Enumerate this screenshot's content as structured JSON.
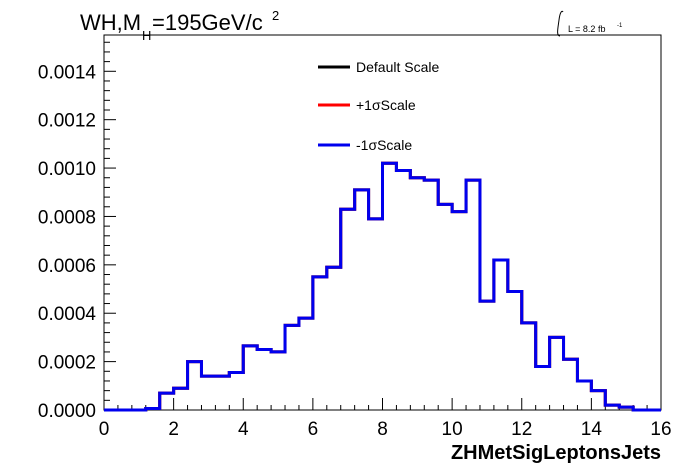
{
  "header": {
    "title_main": "WH,M",
    "title_sub": "H",
    "title_rest": "=195GeV/c",
    "title_sup": "2",
    "lumi_label": "L = 8.2 fb",
    "lumi_sup": "-1"
  },
  "chart_data": {
    "type": "line",
    "xlabel": "ZHMetSigLeptonsJets",
    "ylabel": "",
    "xlim": [
      0,
      16
    ],
    "ylim": [
      0,
      0.00155
    ],
    "x_ticks": [
      "0",
      "2",
      "4",
      "6",
      "8",
      "10",
      "12",
      "14",
      "16"
    ],
    "y_ticks": [
      "0.0000",
      "0.0002",
      "0.0004",
      "0.0006",
      "0.0008",
      "0.0010",
      "0.0012",
      "0.0014"
    ],
    "grid": false,
    "legend_position": "top-center",
    "bin_edges": [
      0,
      0.4,
      0.8,
      1.2,
      1.6,
      2.0,
      2.4,
      2.8,
      3.2,
      3.6,
      4.0,
      4.4,
      4.8,
      5.2,
      5.6,
      6.0,
      6.4,
      6.8,
      7.2,
      7.6,
      8.0,
      8.4,
      8.8,
      9.2,
      9.6,
      10.0,
      10.4,
      10.8,
      11.2,
      11.6,
      12.0,
      12.4,
      12.8,
      13.2,
      13.6,
      14.0,
      14.4,
      14.8,
      15.2,
      15.6,
      16.0
    ],
    "series": [
      {
        "name": "Default Scale",
        "color": "#000000",
        "values": [
          0,
          0,
          0,
          6e-06,
          7e-05,
          9e-05,
          0.0002,
          0.00014,
          0.00014,
          0.000155,
          0.000265,
          0.00025,
          0.00024,
          0.00035,
          0.00038,
          0.00055,
          0.00059,
          0.00083,
          0.00091,
          0.00079,
          0.00102,
          0.00099,
          0.00096,
          0.00095,
          0.00085,
          0.00082,
          0.00095,
          0.00045,
          0.00062,
          0.00049,
          0.00036,
          0.00018,
          0.0003,
          0.00021,
          0.00012,
          8e-05,
          2e-05,
          1.2e-05,
          0,
          0
        ]
      },
      {
        "name": "+1σScale",
        "color": "#ff0000",
        "values": [
          0,
          0,
          0,
          6e-06,
          7e-05,
          9e-05,
          0.0002,
          0.00014,
          0.00014,
          0.000155,
          0.000265,
          0.00025,
          0.00024,
          0.00035,
          0.00038,
          0.00055,
          0.00059,
          0.00083,
          0.00091,
          0.00079,
          0.00102,
          0.00099,
          0.00096,
          0.00095,
          0.00085,
          0.00082,
          0.00095,
          0.00045,
          0.00062,
          0.00049,
          0.00036,
          0.00018,
          0.0003,
          0.00021,
          0.00012,
          8e-05,
          2e-05,
          1.2e-05,
          0,
          0
        ]
      },
      {
        "name": "-1σScale",
        "color": "#0000ee",
        "values": [
          0,
          0,
          0,
          6e-06,
          7e-05,
          9e-05,
          0.0002,
          0.00014,
          0.00014,
          0.000155,
          0.000265,
          0.00025,
          0.00024,
          0.00035,
          0.00038,
          0.00055,
          0.00059,
          0.00083,
          0.00091,
          0.00079,
          0.00102,
          0.00099,
          0.00096,
          0.00095,
          0.00085,
          0.00082,
          0.00095,
          0.00045,
          0.00062,
          0.00049,
          0.00036,
          0.00018,
          0.0003,
          0.00021,
          0.00012,
          8e-05,
          2e-05,
          1.2e-05,
          0,
          0
        ]
      }
    ]
  }
}
